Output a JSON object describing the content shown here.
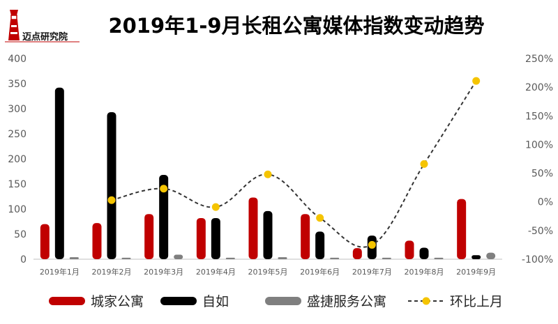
{
  "brand": {
    "logo_text": "迈点研究院"
  },
  "chart_data": {
    "type": "bar",
    "title": "2019年1-9月长租公寓媒体指数变动趋势",
    "categories": [
      "2019年1月",
      "2019年2月",
      "2019年3月",
      "2019年4月",
      "2019年5月",
      "2019年6月",
      "2019年7月",
      "2019年8月",
      "2019年9月"
    ],
    "series": [
      {
        "name": "城家公寓",
        "type": "bar",
        "color": "#c00000",
        "values": [
          70,
          72,
          90,
          82,
          123,
          90,
          22,
          37,
          120
        ]
      },
      {
        "name": "自如",
        "type": "bar",
        "color": "#000000",
        "values": [
          342,
          293,
          168,
          82,
          96,
          55,
          47,
          23,
          8
        ]
      },
      {
        "name": "盛捷服务公寓",
        "type": "bar",
        "color": "#7f7f7f",
        "values": [
          4,
          3,
          9,
          3,
          4,
          3,
          3,
          3,
          13
        ]
      },
      {
        "name": "环比上月",
        "type": "line",
        "axis": "right",
        "color": "#f5c400",
        "line_color": "#333333",
        "values": [
          null,
          3,
          23,
          -9,
          48,
          -28,
          -75,
          66,
          211
        ]
      }
    ],
    "y_left": {
      "min": 0,
      "max": 400,
      "ticks": [
        "0",
        "50",
        "100",
        "150",
        "200",
        "250",
        "300",
        "350",
        "400"
      ]
    },
    "y_right": {
      "min": -100,
      "max": 250,
      "ticks": [
        "-100%",
        "-50%",
        "0%",
        "50%",
        "100%",
        "150%",
        "200%",
        "250%"
      ]
    },
    "grid": false,
    "legend": "bottom"
  }
}
